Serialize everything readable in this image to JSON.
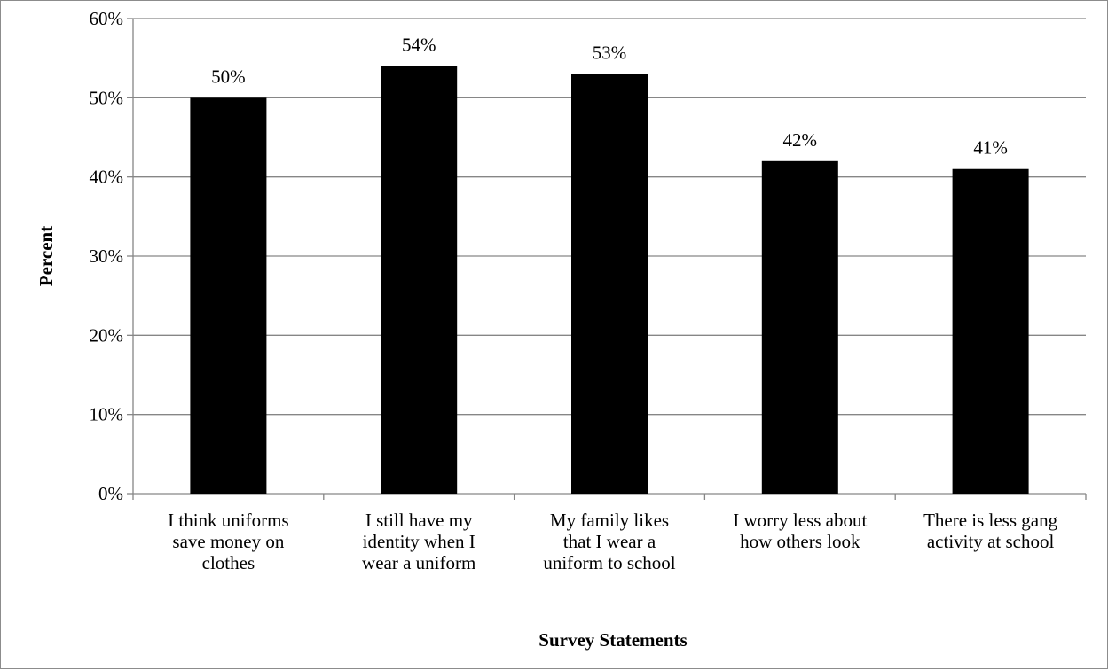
{
  "chart_data": {
    "type": "bar",
    "categories": [
      [
        "I think uniforms",
        "save money on",
        "clothes"
      ],
      [
        "I still have my",
        "identity when I",
        "wear a uniform"
      ],
      [
        "My family likes",
        "that I wear a",
        "uniform to school"
      ],
      [
        "I worry less about",
        "how others look"
      ],
      [
        "There is less gang",
        "activity at school"
      ]
    ],
    "values": [
      50,
      54,
      53,
      42,
      41
    ],
    "data_labels": [
      "50%",
      "54%",
      "53%",
      "42%",
      "41%"
    ],
    "xlabel": "Survey Statements",
    "ylabel": "Percent",
    "ylim": [
      0,
      60
    ],
    "yticks": [
      0,
      10,
      20,
      30,
      40,
      50,
      60
    ],
    "ytick_labels": [
      "0%",
      "10%",
      "20%",
      "30%",
      "40%",
      "50%",
      "60%"
    ],
    "grid": true,
    "bar_color": "#000000",
    "grid_color": "#868686"
  }
}
